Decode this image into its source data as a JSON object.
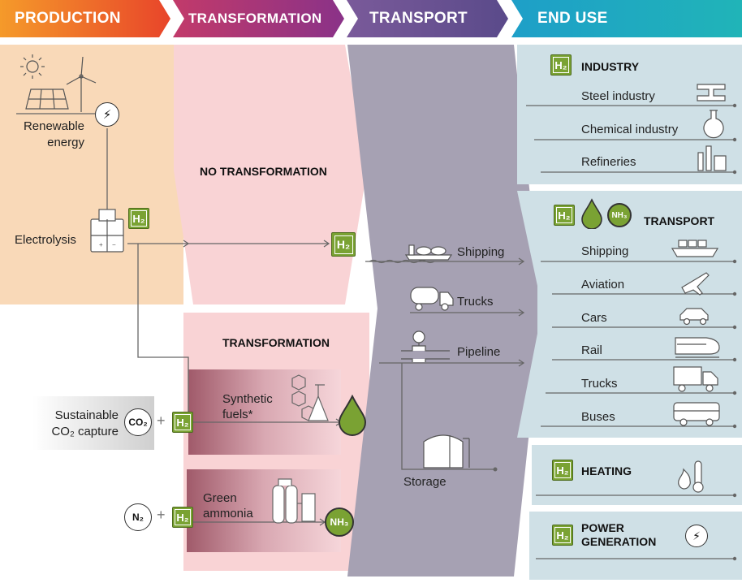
{
  "headers": {
    "production": "PRODUCTION",
    "transformation": "TRANSFORMATION",
    "transport": "TRANSPORT",
    "end_use": "END USE"
  },
  "production": {
    "renewable": "Renewable\nenergy",
    "renewable_line1": "Renewable",
    "renewable_line2": "energy",
    "electrolysis": "Electrolysis",
    "sustainable_line1": "Sustainable",
    "sustainable_line2": "CO₂ capture",
    "co2": "CO₂",
    "n2": "N₂",
    "h2": "H₂"
  },
  "transformation": {
    "none": "NO TRANSFORMATION",
    "with": "TRANSFORMATION",
    "synthetic_line1": "Synthetic",
    "synthetic_line2": "fuels*",
    "ammonia_line1": "Green",
    "ammonia_line2": "ammonia",
    "nh3": "NH₃"
  },
  "transport": {
    "shipping": "Shipping",
    "trucks": "Trucks",
    "pipeline": "Pipeline",
    "storage": "Storage"
  },
  "end_use": {
    "industry": {
      "title": "INDUSTRY",
      "items": [
        "Steel industry",
        "Chemical industry",
        "Refineries"
      ]
    },
    "transport": {
      "title": "TRANSPORT",
      "items": [
        "Shipping",
        "Aviation",
        "Cars",
        "Rail",
        "Trucks",
        "Buses"
      ]
    },
    "heating": {
      "title": "HEATING"
    },
    "power_line1": "POWER",
    "power_line2": "GENERATION",
    "nh3": "NH₃"
  },
  "colors": {
    "production_header": "#f07a2a",
    "transformation_header": "#a8327a",
    "transport_header": "#6a4f8e",
    "end_use_header": "#1aa6c4",
    "production_bg": "#f9d9b8",
    "transformation_bg": "#f9d3d5",
    "transport_bg": "#a6a1b3",
    "end_use_bg": "#cfe0e6",
    "hydrogen_green": "#7aa233"
  }
}
